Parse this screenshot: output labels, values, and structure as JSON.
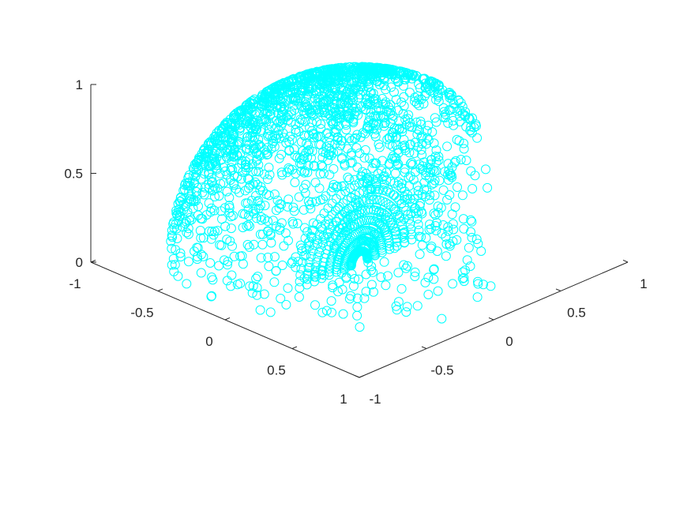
{
  "chart_data": {
    "type": "scatter",
    "subtype": "scatter3",
    "title": "",
    "xlabel": "",
    "ylabel": "",
    "zlabel": "",
    "xlim": [
      -1,
      1
    ],
    "ylim": [
      -1,
      1
    ],
    "zlim": [
      0,
      1
    ],
    "grid": false,
    "legend": "none",
    "x_ticks": [
      {
        "value": -1,
        "label": "-1"
      },
      {
        "value": -0.5,
        "label": "-0.5"
      },
      {
        "value": 0,
        "label": "0"
      },
      {
        "value": 0.5,
        "label": "0.5"
      },
      {
        "value": 1,
        "label": "1"
      }
    ],
    "y_ticks": [
      {
        "value": -1,
        "label": "-1"
      },
      {
        "value": -0.5,
        "label": "-0.5"
      },
      {
        "value": 0,
        "label": "0"
      },
      {
        "value": 0.5,
        "label": "0.5"
      },
      {
        "value": 1,
        "label": "1"
      }
    ],
    "z_ticks": [
      {
        "value": 0,
        "label": "0"
      },
      {
        "value": 0.5,
        "label": "0.5"
      },
      {
        "value": 1,
        "label": "1"
      }
    ],
    "marker": "circle-open",
    "series": [
      {
        "color": "#00ffff",
        "shape": "upper unit hemisphere (z >= 0) with the x > 0, y > 0 quadrant missing",
        "radius": 1,
        "missing_quadrant": {
          "x": [
            0,
            1
          ],
          "y": [
            0,
            1
          ]
        }
      }
    ]
  }
}
